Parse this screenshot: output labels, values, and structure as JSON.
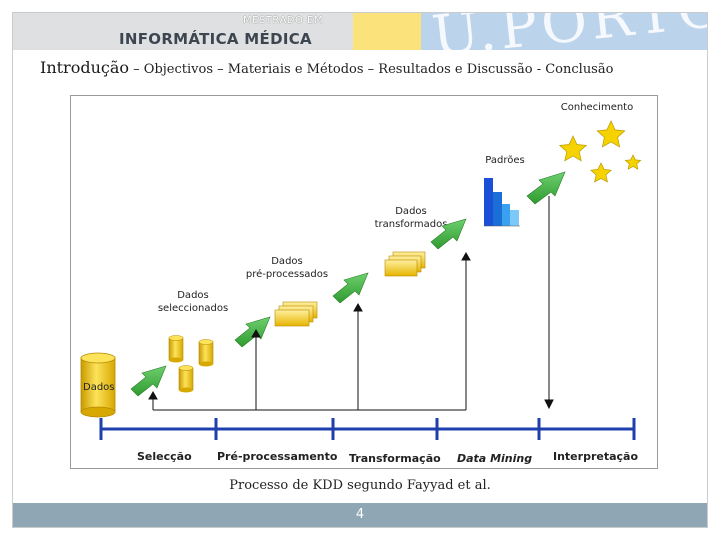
{
  "header": {
    "brand_small": "MESTRADO EM",
    "brand_main": "INFORMÁTICA MÉDICA",
    "logo_text": "U.PORTO"
  },
  "nav": {
    "current": "Introdução",
    "separator": " – ",
    "items": [
      "Objectivos",
      "Materiais e Métodos",
      "Resultados e Discussão",
      "- Conclusão"
    ]
  },
  "diagram": {
    "stages": [
      {
        "label": "Dados"
      },
      {
        "label": "Dados seleccionados",
        "line1": "Dados",
        "line2": "seleccionados"
      },
      {
        "label": "Dados pré-processados",
        "line1": "Dados",
        "line2": "pré-processados"
      },
      {
        "label": "Dados transformados",
        "line1": "Dados",
        "line2": "transformados"
      },
      {
        "label": "Padrões"
      },
      {
        "label": "Conhecimento"
      }
    ],
    "steps": [
      "Selecção",
      "Pré-processamento",
      "Transformação",
      "Data Mining",
      "Interpretação"
    ],
    "colors": {
      "arrow": "#3fae3f",
      "cylinder": "#f3cd12",
      "timeline": "#1f3fae",
      "bars": "#1a6fd6",
      "stars": "#f5d200"
    }
  },
  "caption": "Processo de KDD segundo Fayyad et al.",
  "page_number": "4"
}
